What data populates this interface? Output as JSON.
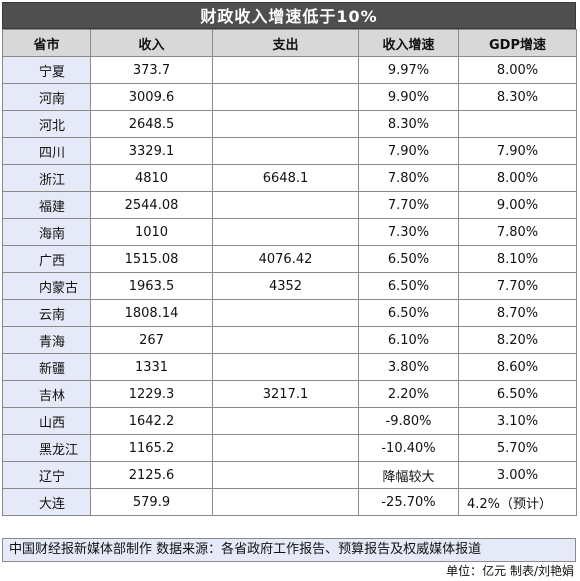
{
  "title": "财政收入增速低于10%",
  "headers": [
    "省市",
    "收入",
    "支出",
    "收入增速",
    "GDP增速"
  ],
  "rows": [
    [
      "宁夏",
      "373.7",
      "",
      "9.97%",
      "8.00%"
    ],
    [
      "河南",
      "3009.6",
      "",
      "9.90%",
      "8.30%"
    ],
    [
      "河北",
      "2648.5",
      "",
      "8.30%",
      ""
    ],
    [
      "四川",
      "3329.1",
      "",
      "7.90%",
      "7.90%"
    ],
    [
      "浙江",
      "4810",
      "6648.1",
      "7.80%",
      "8.00%"
    ],
    [
      "福建",
      "2544.08",
      "",
      "7.70%",
      "9.00%"
    ],
    [
      "海南",
      "1010",
      "",
      "7.30%",
      "7.80%"
    ],
    [
      "广西",
      "1515.08",
      "4076.42",
      "6.50%",
      "8.10%"
    ],
    [
      "内蒙古",
      "1963.5",
      "4352",
      "6.50%",
      "7.70%"
    ],
    [
      "云南",
      "1808.14",
      "",
      "6.50%",
      "8.70%"
    ],
    [
      "青海",
      "267",
      "",
      "6.10%",
      "8.20%"
    ],
    [
      "新疆",
      "1331",
      "",
      "3.80%",
      "8.60%"
    ],
    [
      "吉林",
      "1229.3",
      "3217.1",
      "2.20%",
      "6.50%"
    ],
    [
      "山西",
      "1642.2",
      "",
      "-9.80%",
      "3.10%"
    ],
    [
      "黑龙江",
      "1165.2",
      "",
      "-10.40%",
      "5.70%"
    ],
    [
      "辽宁",
      "2125.6",
      "",
      "降幅较大",
      "3.00%"
    ],
    [
      "大连",
      "579.9",
      "",
      "-25.70%",
      "4.2%（预计）"
    ]
  ],
  "footer": {
    "source": "中国财经报新媒体部制作  数据来源：各省政府工作报告、预算报告及权威媒体报道",
    "credit": "单位：亿元  制表/刘艳娟"
  }
}
